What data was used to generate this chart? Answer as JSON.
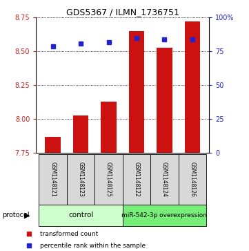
{
  "title": "GDS5367 / ILMN_1736751",
  "samples": [
    "GSM1148121",
    "GSM1148123",
    "GSM1148125",
    "GSM1148122",
    "GSM1148124",
    "GSM1148126"
  ],
  "transformed_count": [
    7.87,
    8.03,
    8.13,
    8.65,
    8.53,
    8.72
  ],
  "percentile_rank": [
    79,
    81,
    82,
    85,
    84,
    84
  ],
  "ylim_left": [
    7.75,
    8.75
  ],
  "ylim_right": [
    0,
    100
  ],
  "yticks_left": [
    7.75,
    8.0,
    8.25,
    8.5,
    8.75
  ],
  "yticks_right": [
    0,
    25,
    50,
    75,
    100
  ],
  "ytick_labels_right": [
    "0",
    "25",
    "50",
    "75",
    "100%"
  ],
  "bar_color": "#cc1111",
  "dot_color": "#2222cc",
  "bar_bottom": 7.75,
  "grid_lines": [
    7.75,
    8.0,
    8.25,
    8.5,
    8.75
  ],
  "control_label": "control",
  "treatment_label": "miR-542-3p overexpression",
  "protocol_label": "protocol",
  "legend_bar_label": "transformed count",
  "legend_dot_label": "percentile rank within the sample",
  "bg_color_control": "#ccffcc",
  "bg_color_treatment": "#77ee77",
  "label_box_color": "#d8d8d8",
  "tick_color_left": "#cc2222",
  "tick_color_right": "#2222cc",
  "bar_width": 0.55,
  "dot_size": 4
}
